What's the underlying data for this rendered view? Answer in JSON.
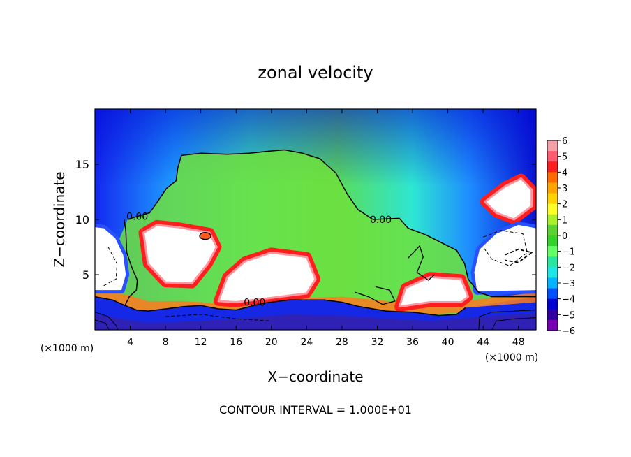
{
  "chart_data": {
    "type": "heatmap",
    "title": "zonal velocity",
    "xlabel": "X−coordinate",
    "ylabel": "Z−coordinate",
    "x_unit_left": "(×1000 m)",
    "x_unit_right": "(×1000 m)",
    "footer": "CONTOUR INTERVAL = 1.000E+01",
    "xlim": [
      0,
      50
    ],
    "ylim": [
      0,
      20
    ],
    "x_ticks": [
      "4",
      "8",
      "12",
      "16",
      "20",
      "24",
      "28",
      "32",
      "36",
      "40",
      "44",
      "48"
    ],
    "y_ticks": [
      "5",
      "10",
      "15"
    ],
    "colorbar": {
      "range": [
        -6,
        6
      ],
      "ticks": [
        "6",
        "5",
        "4",
        "3",
        "2",
        "1",
        "0",
        "−1",
        "−2",
        "−3",
        "−4",
        "−5",
        "−6"
      ],
      "colors": [
        "#f5a0a8",
        "#ff5a6e",
        "#ff1e1e",
        "#ff6a00",
        "#ffa500",
        "#ffd200",
        "#ffff28",
        "#aaf028",
        "#5ad232",
        "#32d22d",
        "#64ff64",
        "#28e6a0",
        "#1ee6e6",
        "#00b4ff",
        "#0050ff",
        "#0000d2",
        "#3200a0",
        "#7800b4"
      ]
    },
    "contour_labels": [
      {
        "text": "0.00",
        "x": 4.8,
        "z": 10.3
      },
      {
        "text": "0.00",
        "x": 32.4,
        "z": 10.0
      },
      {
        "text": "0.00",
        "x": 18.1,
        "z": 2.5
      }
    ],
    "regions": {
      "description_free_fields": true,
      "zero_contour_upper": [
        [
          3.7,
          10.0
        ],
        [
          4.5,
          10.2
        ],
        [
          6.2,
          10.6
        ],
        [
          7.1,
          11.6
        ],
        [
          8.1,
          12.8
        ],
        [
          9.2,
          13.5
        ],
        [
          9.4,
          14.7
        ],
        [
          9.8,
          15.8
        ],
        [
          12.0,
          16.0
        ],
        [
          15.0,
          15.9
        ],
        [
          17.5,
          16.0
        ],
        [
          20.0,
          16.2
        ],
        [
          21.5,
          16.3
        ],
        [
          23.5,
          16.0
        ],
        [
          25.5,
          15.5
        ],
        [
          27.3,
          14.2
        ],
        [
          28.6,
          12.3
        ],
        [
          29.8,
          10.9
        ],
        [
          31.5,
          10.0
        ],
        [
          34.5,
          10.1
        ],
        [
          35.5,
          9.2
        ],
        [
          37.5,
          8.6
        ],
        [
          39.0,
          8.0
        ],
        [
          41.0,
          7.2
        ],
        [
          41.9,
          6.0
        ],
        [
          42.3,
          4.6
        ],
        [
          43.5,
          3.4
        ],
        [
          45.0,
          3.0
        ],
        [
          50.0,
          3.0
        ]
      ],
      "zero_contour_lower": [
        [
          0.0,
          3.0
        ],
        [
          2.0,
          2.7
        ],
        [
          3.4,
          2.2
        ],
        [
          4.7,
          1.8
        ],
        [
          6.0,
          1.7
        ],
        [
          8.0,
          1.9
        ],
        [
          10.0,
          2.1
        ],
        [
          12.0,
          2.2
        ],
        [
          14.0,
          1.9
        ],
        [
          16.0,
          1.8
        ],
        [
          19.0,
          2.4
        ],
        [
          22.0,
          2.7
        ],
        [
          26.0,
          2.7
        ],
        [
          28.0,
          2.5
        ],
        [
          30.0,
          2.1
        ],
        [
          33.0,
          1.7
        ],
        [
          36.0,
          1.6
        ],
        [
          39.0,
          1.3
        ],
        [
          41.0,
          1.4
        ],
        [
          42.0,
          2.0
        ]
      ],
      "positive_cores": [
        [
          [
            5.5,
            8.8
          ],
          [
            7.0,
            9.5
          ],
          [
            9.5,
            9.3
          ],
          [
            13.0,
            8.8
          ],
          [
            13.8,
            7.5
          ],
          [
            12.8,
            6.0
          ],
          [
            11.0,
            4.2
          ],
          [
            8.0,
            4.3
          ],
          [
            6.0,
            6.0
          ]
        ],
        [
          [
            14.0,
            2.6
          ],
          [
            16.0,
            2.5
          ],
          [
            19.0,
            2.8
          ],
          [
            24.0,
            3.3
          ],
          [
            25.0,
            4.6
          ],
          [
            24.0,
            6.6
          ],
          [
            20.0,
            7.0
          ],
          [
            17.0,
            6.2
          ],
          [
            15.0,
            4.8
          ]
        ],
        [
          [
            34.5,
            2.1
          ],
          [
            38.0,
            2.5
          ],
          [
            41.5,
            2.5
          ],
          [
            42.3,
            3.0
          ],
          [
            41.5,
            4.6
          ],
          [
            38.0,
            4.8
          ],
          [
            35.2,
            3.8
          ]
        ],
        [
          [
            46.5,
            13.0
          ],
          [
            48.3,
            13.7
          ],
          [
            49.5,
            12.7
          ],
          [
            49.5,
            11.2
          ],
          [
            47.5,
            10.0
          ],
          [
            45.5,
            10.6
          ],
          [
            44.2,
            11.6
          ]
        ]
      ],
      "negative_core_left": [
        [
          0.0,
          9.3
        ],
        [
          1.0,
          9.2
        ],
        [
          2.3,
          8.3
        ],
        [
          3.2,
          6.8
        ],
        [
          3.5,
          5.0
        ],
        [
          3.0,
          3.6
        ],
        [
          0.0,
          3.6
        ]
      ],
      "negative_core_right": [
        [
          43.3,
          3.5
        ],
        [
          43.0,
          5.2
        ],
        [
          43.6,
          7.3
        ],
        [
          45.5,
          8.7
        ],
        [
          48.0,
          9.5
        ],
        [
          50.0,
          9.2
        ],
        [
          50.0,
          3.6
        ]
      ]
    }
  }
}
